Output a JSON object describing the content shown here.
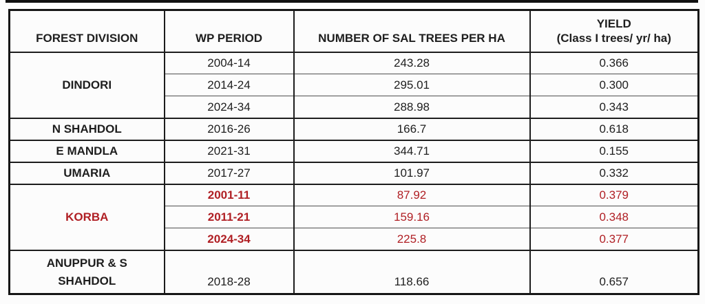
{
  "colors": {
    "text": "#1e1e1e",
    "highlight_red": "#b01f24",
    "border": "#1c1c1c",
    "thin_border": "#4e4e4e"
  },
  "table": {
    "header": {
      "forest_division": "FOREST DIVISION",
      "wp_period": "WP PERIOD",
      "sal_trees": "NUMBER OF SAL TREES PER HA",
      "yield_line1": "YIELD",
      "yield_line2": "(Class I trees/ yr/ ha)"
    },
    "groups": [
      {
        "division": "DINDORI",
        "rows": [
          {
            "period": "2004-14",
            "trees": "243.28",
            "yield": "0.366"
          },
          {
            "period": "2014-24",
            "trees": "295.01",
            "yield": "0.300"
          },
          {
            "period": "2024-34",
            "trees": "288.98",
            "yield": "0.343"
          }
        ]
      },
      {
        "division": "N SHAHDOL",
        "rows": [
          {
            "period": "2016-26",
            "trees": "166.7",
            "yield": "0.618"
          }
        ]
      },
      {
        "division": "E MANDLA",
        "rows": [
          {
            "period": "2021-31",
            "trees": "344.71",
            "yield": "0.155"
          }
        ]
      },
      {
        "division": "UMARIA",
        "rows": [
          {
            "period": "2017-27",
            "trees": "101.97",
            "yield": "0.332"
          }
        ]
      },
      {
        "division": "KORBA",
        "highlighted": true,
        "rows": [
          {
            "period": "2001-11",
            "trees": "87.92",
            "yield": "0.379"
          },
          {
            "period": "2011-21",
            "trees": "159.16",
            "yield": "0.348"
          },
          {
            "period": "2024-34",
            "trees": "225.8",
            "yield": "0.377"
          }
        ]
      },
      {
        "division": "ANUPPUR & S SHAHDOL",
        "rows": [
          {
            "period": "2018-28",
            "trees": "118.66",
            "yield": "0.657"
          }
        ]
      }
    ]
  },
  "chart_data": {
    "type": "table",
    "title": "",
    "columns": [
      "FOREST DIVISION",
      "WP PERIOD",
      "NUMBER OF SAL TREES PER HA",
      "YIELD (Class I trees/ yr/ ha)"
    ],
    "rows": [
      [
        "DINDORI",
        "2004-14",
        243.28,
        0.366
      ],
      [
        "DINDORI",
        "2014-24",
        295.01,
        0.3
      ],
      [
        "DINDORI",
        "2024-34",
        288.98,
        0.343
      ],
      [
        "N SHAHDOL",
        "2016-26",
        166.7,
        0.618
      ],
      [
        "E MANDLA",
        "2021-31",
        344.71,
        0.155
      ],
      [
        "UMARIA",
        "2017-27",
        101.97,
        0.332
      ],
      [
        "KORBA",
        "2001-11",
        87.92,
        0.379
      ],
      [
        "KORBA",
        "2011-21",
        159.16,
        0.348
      ],
      [
        "KORBA",
        "2024-34",
        225.8,
        0.377
      ],
      [
        "ANUPPUR & S SHAHDOL",
        "2018-28",
        118.66,
        0.657
      ]
    ],
    "merged_row_groups": [
      "DINDORI",
      "KORBA"
    ],
    "highlighted_division": "KORBA",
    "highlight_color": "#b01f24"
  }
}
